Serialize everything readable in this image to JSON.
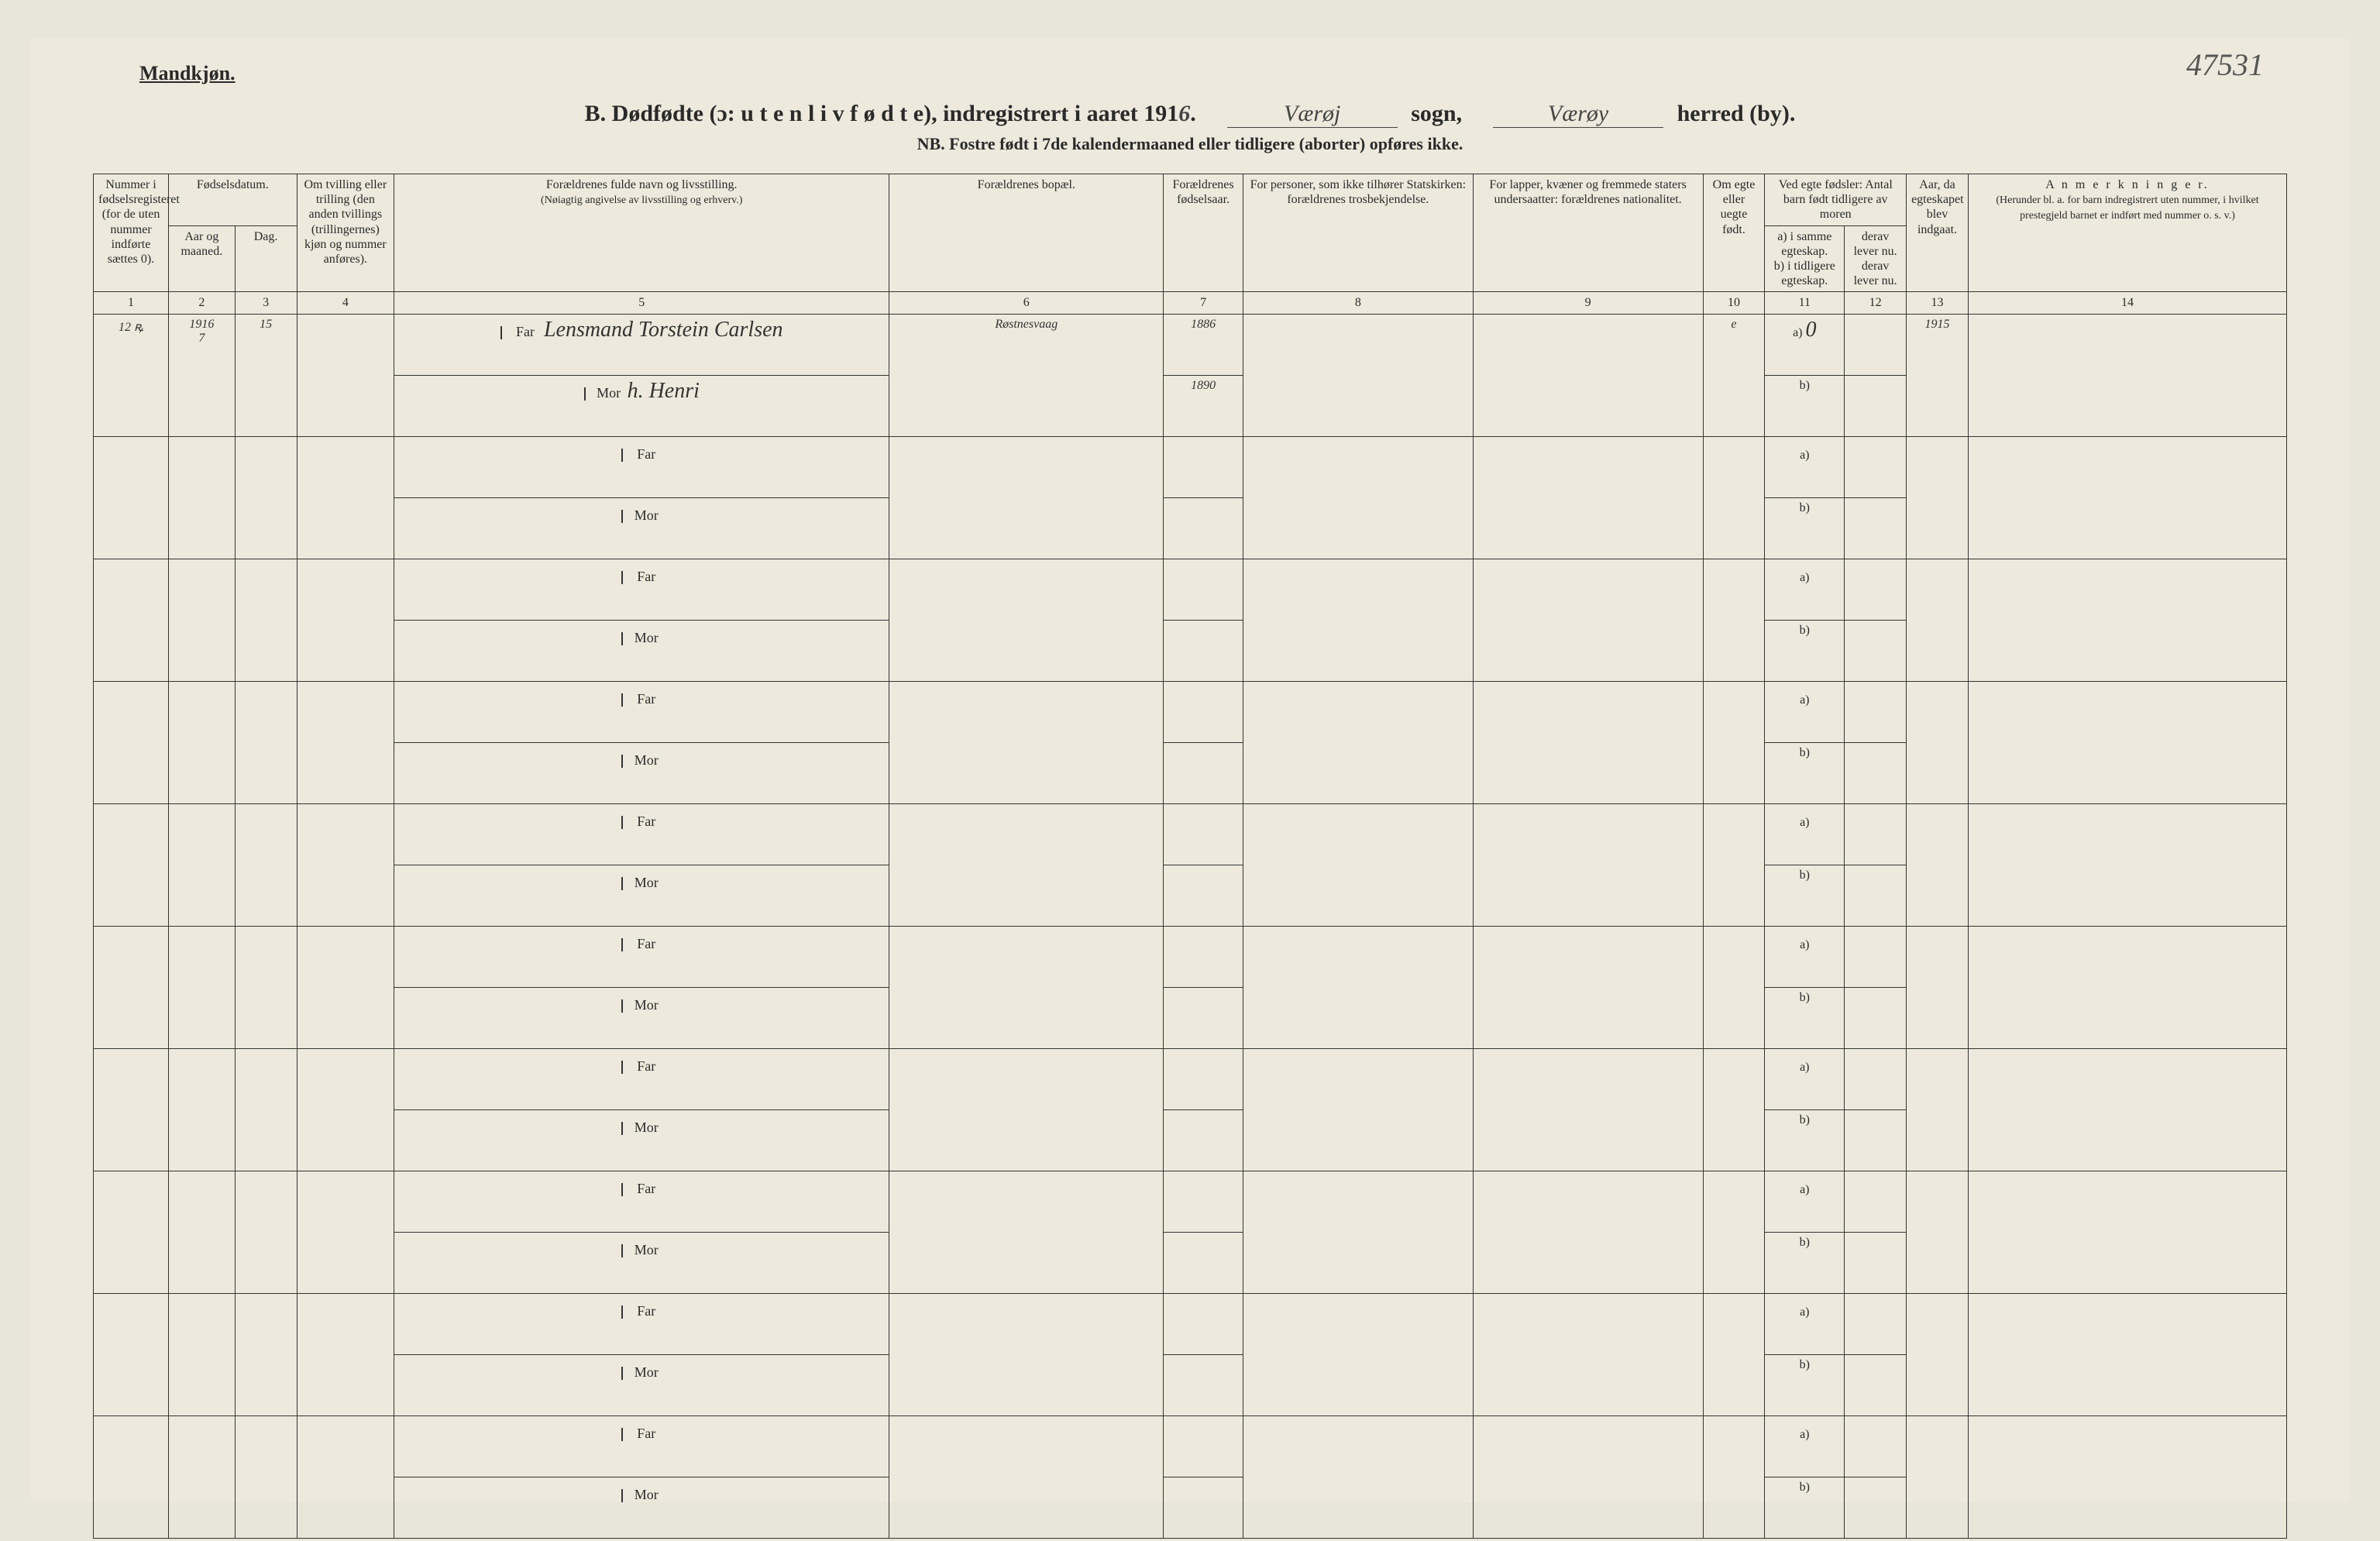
{
  "page": {
    "paper_bg": "#edeadd",
    "text_color": "#2a2a2a",
    "top_right_annotation": "47531"
  },
  "header": {
    "gender_label": "Mandkjøn.",
    "title_prefix": "B.  Dødfødte (ɔ:  u t e n  l i v  f ø d t e),  indregistrert i aaret 191",
    "year_suffix_hand": "6",
    "sogn_hand": "Værøj",
    "sogn_label": "sogn,",
    "herred_hand": "Værøy",
    "herred_label": "herred (by).",
    "nb_line": "NB.  Fostre født i 7de kalendermaaned eller tidligere (aborter) opføres ikke."
  },
  "columns": {
    "c1": {
      "label": "Nummer i fødselsregisteret (for de uten nummer indførte sættes 0).",
      "num": "1"
    },
    "c2_3_group": "Fødselsdatum.",
    "c2": {
      "label": "Aar og maaned.",
      "num": "2"
    },
    "c3": {
      "label": "Dag.",
      "num": "3"
    },
    "c4": {
      "label": "Om tvilling eller trilling (den anden tvillings (trillingernes) kjøn og nummer anføres).",
      "num": "4"
    },
    "c5": {
      "label": "Forældrenes fulde navn og livsstilling.",
      "sub": "(Nøiagtig angivelse av livsstilling og erhverv.)",
      "num": "5"
    },
    "c6": {
      "label": "Forældrenes bopæl.",
      "num": "6"
    },
    "c7": {
      "label": "Forældrenes fødselsaar.",
      "num": "7"
    },
    "c8": {
      "label": "For personer, som ikke tilhører Statskirken: forældrenes trosbekjendelse.",
      "num": "8"
    },
    "c9": {
      "label": "For lapper, kvæner og fremmede staters undersaatter: forældrenes nationalitet.",
      "num": "9"
    },
    "c10": {
      "label": "Om egte eller uegte født.",
      "num": "10"
    },
    "c11_12_group": "Ved egte fødsler: Antal barn født tidligere av moren",
    "c11": {
      "label": "a) i samme egteskap.\nb) i tidligere egteskap.",
      "num": "11"
    },
    "c12": {
      "label": "derav lever nu.\nderav lever nu.",
      "num": "12"
    },
    "c13": {
      "label": "Aar, da egteskapet blev indgaat.",
      "num": "13"
    },
    "c14": {
      "label": "A n m e r k n i n g e r.",
      "sub": "(Herunder bl. a. for barn indregistrert uten nummer, i hvilket prestegjeld barnet er indført med nummer o. s. v.)",
      "num": "14"
    }
  },
  "row_labels": {
    "far": "Far",
    "mor": "Mor",
    "a": "a)",
    "b": "b)"
  },
  "entries": [
    {
      "reg_no": "12 ꝶ",
      "year_month": "1916\n7",
      "day": "15",
      "twin": "",
      "far_name": "Lensmand Torstein Carlsen",
      "mor_name": "h. Henri",
      "bopael": "Røstnesvaag",
      "far_year": "1886",
      "mor_year": "1890",
      "tros": "",
      "nat": "",
      "egte": "e",
      "c11a": "0",
      "c12a": "",
      "c13": "1915",
      "anm": ""
    }
  ],
  "empty_row_count": 9
}
